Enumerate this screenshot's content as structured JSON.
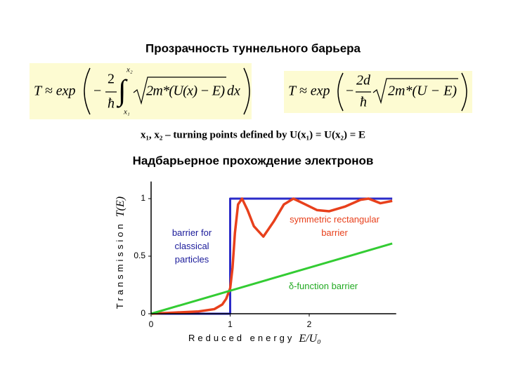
{
  "slide": {
    "title": "Прозрачность туннельного барьера",
    "formula_1": {
      "lhs": "T ≈ exp",
      "minus": "−",
      "numerator": "2",
      "denominator": "ħ",
      "integral": "∫",
      "upper_limit": "x₂",
      "lower_limit": "x₁",
      "radicand": "2m*(U(x) − E)",
      "differential": "dx"
    },
    "formula_2": {
      "lhs": "T ≈ exp",
      "minus": "−",
      "numerator": "2d",
      "denominator": "ħ",
      "radicand": "2m*(U − E)"
    },
    "caption": "x₁, x₂ – turning points defined by U(x₁) = U(x₂) = E",
    "heading": "Надбарьерное прохождение электронов"
  },
  "chart_data": {
    "type": "line",
    "x_label": "Reduced energy",
    "x_label_symbol": "E/U₀",
    "y_label": "Transmission",
    "y_label_symbol": "T(E)",
    "xlim": [
      0,
      3.1
    ],
    "ylim": [
      0,
      1.1
    ],
    "xticks": [
      0,
      1,
      2
    ],
    "yticks": [
      0,
      0.5,
      1
    ],
    "series": [
      {
        "name": "barrier for classical particles",
        "color": "#2b2bc8",
        "x": [
          0,
          1,
          1,
          3.05
        ],
        "values": [
          0,
          0,
          1,
          1
        ]
      },
      {
        "name": "symmetric rectangular barrier",
        "color": "#e8401c",
        "x": [
          0,
          0.3,
          0.6,
          0.8,
          0.9,
          0.95,
          1.0,
          1.03,
          1.06,
          1.1,
          1.15,
          1.22,
          1.3,
          1.42,
          1.55,
          1.68,
          1.8,
          1.95,
          2.1,
          2.25,
          2.45,
          2.65,
          2.75,
          2.9,
          3.05
        ],
        "values": [
          0,
          0.01,
          0.02,
          0.04,
          0.08,
          0.13,
          0.22,
          0.4,
          0.7,
          0.95,
          1.0,
          0.9,
          0.76,
          0.67,
          0.8,
          0.95,
          1.0,
          0.95,
          0.9,
          0.89,
          0.93,
          0.99,
          1.0,
          0.96,
          0.98
        ]
      },
      {
        "name": "δ-function barrier",
        "color": "#33cc33",
        "x": [
          0,
          3.05
        ],
        "values": [
          0,
          0.61
        ]
      }
    ]
  }
}
